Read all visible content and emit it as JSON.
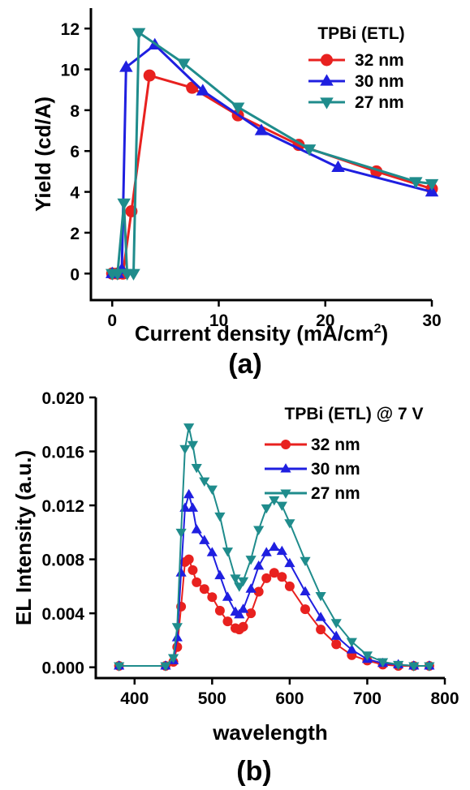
{
  "chart_data": [
    {
      "type": "line",
      "panel_label": "(a)",
      "xlabel": "Current density (mA/cm",
      "xlabel_sup": "2",
      "xlabel_tail": ")",
      "ylabel": "Yield (cd/A)",
      "xlim": [
        -2,
        30
      ],
      "ylim": [
        -1.3,
        13
      ],
      "xticks": [
        0,
        10,
        20,
        30
      ],
      "yticks": [
        0,
        2,
        4,
        6,
        8,
        10,
        12
      ],
      "grid": false,
      "legend_title": "TPBi (ETL)",
      "legend_position": "top-right",
      "series": [
        {
          "name": "32 nm",
          "color": "#e8211f",
          "marker": "circle",
          "x": [
            0,
            0.5,
            1.0,
            1.8,
            3.5,
            7.5,
            11.8,
            17.5,
            24.8,
            30
          ],
          "y": [
            0,
            0,
            0,
            3.05,
            9.7,
            9.1,
            7.75,
            6.3,
            5.0,
            4.15
          ]
        },
        {
          "name": "30 nm",
          "color": "#1f1fe0",
          "marker": "triangle-up",
          "x": [
            0,
            0.5,
            0.9,
            1.3,
            4.0,
            8.5,
            14.0,
            21.2,
            30
          ],
          "y": [
            0,
            0,
            0.2,
            10.1,
            11.2,
            8.95,
            7.0,
            5.2,
            4.0
          ]
        },
        {
          "name": "27 nm",
          "color": "#1f8c8c",
          "marker": "triangle-down",
          "x": [
            0,
            0.5,
            1.1,
            1.4,
            2.0,
            2.5,
            6.7,
            11.8,
            18.5,
            28.5,
            30
          ],
          "y": [
            0,
            0,
            3.45,
            0,
            0,
            11.8,
            10.3,
            8.15,
            6.1,
            4.5,
            4.4
          ]
        }
      ]
    },
    {
      "type": "line",
      "panel_label": "(b)",
      "xlabel": "wavelength",
      "ylabel": "EL Intensity (a.u.)",
      "xlim": [
        350,
        800
      ],
      "ylim": [
        -0.0008,
        0.02
      ],
      "xticks": [
        400,
        500,
        600,
        700,
        800
      ],
      "yticks": [
        "0.000",
        "0.004",
        "0.008",
        "0.012",
        "0.016",
        "0.020"
      ],
      "grid": false,
      "legend_title": "TPBi (ETL) @ 7 V",
      "legend_position": "top-right",
      "series": [
        {
          "name": "32 nm",
          "color": "#e8211f",
          "marker": "circle",
          "x": [
            380,
            440,
            450,
            455,
            460,
            465,
            470,
            475,
            480,
            490,
            500,
            510,
            520,
            530,
            535,
            540,
            550,
            560,
            570,
            580,
            590,
            600,
            620,
            640,
            660,
            680,
            700,
            720,
            740,
            760,
            780
          ],
          "y": [
            0.0001,
            0.0001,
            0.0004,
            0.0015,
            0.0045,
            0.0078,
            0.008,
            0.0072,
            0.0063,
            0.0058,
            0.0052,
            0.0042,
            0.0034,
            0.0029,
            0.0028,
            0.003,
            0.004,
            0.0056,
            0.0066,
            0.007,
            0.0067,
            0.006,
            0.0043,
            0.0028,
            0.0017,
            0.0009,
            0.0005,
            0.0002,
            0.0001,
            0.0001,
            0.0001
          ]
        },
        {
          "name": "30 nm",
          "color": "#1f1fe0",
          "marker": "triangle-up",
          "x": [
            380,
            440,
            450,
            455,
            460,
            465,
            470,
            475,
            480,
            490,
            500,
            510,
            520,
            530,
            535,
            540,
            550,
            560,
            570,
            580,
            590,
            600,
            620,
            640,
            660,
            680,
            700,
            720,
            740,
            760,
            780
          ],
          "y": [
            0.0001,
            0.0001,
            0.0005,
            0.0022,
            0.007,
            0.0118,
            0.0128,
            0.0118,
            0.0102,
            0.0094,
            0.0085,
            0.0068,
            0.0052,
            0.0041,
            0.0039,
            0.0043,
            0.0058,
            0.0075,
            0.0085,
            0.0089,
            0.0086,
            0.0077,
            0.0056,
            0.0037,
            0.0023,
            0.0013,
            0.0006,
            0.0003,
            0.0002,
            0.0001,
            0.0001
          ]
        },
        {
          "name": "27 nm",
          "color": "#1f8c8c",
          "marker": "triangle-down",
          "x": [
            380,
            440,
            450,
            455,
            460,
            465,
            470,
            475,
            480,
            490,
            500,
            510,
            520,
            530,
            535,
            540,
            550,
            560,
            570,
            580,
            590,
            600,
            620,
            640,
            660,
            680,
            700,
            720,
            740,
            760,
            780
          ],
          "y": [
            0.0001,
            0.0001,
            0.0007,
            0.003,
            0.01,
            0.0162,
            0.0178,
            0.0165,
            0.0148,
            0.0138,
            0.0132,
            0.0112,
            0.0086,
            0.0066,
            0.006,
            0.0064,
            0.008,
            0.0102,
            0.0118,
            0.0124,
            0.012,
            0.0107,
            0.0079,
            0.0053,
            0.0033,
            0.0019,
            0.0009,
            0.0004,
            0.0002,
            0.0001,
            0.0001
          ]
        }
      ]
    }
  ]
}
